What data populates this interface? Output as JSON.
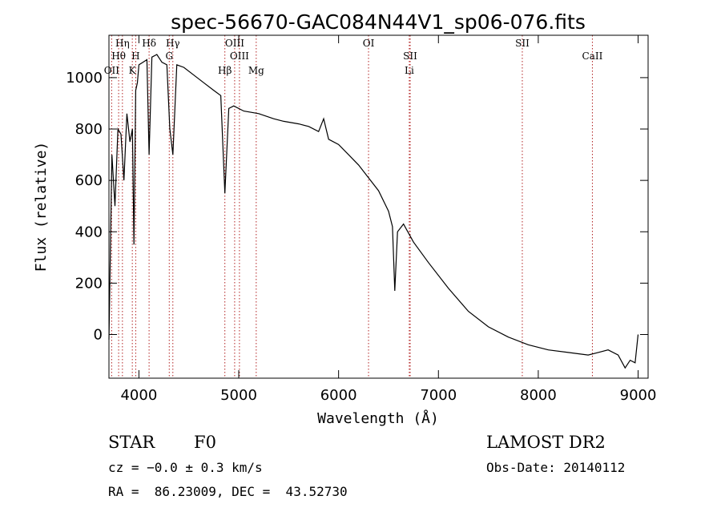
{
  "chart_data": {
    "type": "line",
    "title": "spec-56670-GAC084N44V1_sp06-076.fits",
    "xlabel": "Wavelength (Å)",
    "ylabel": "Flux (relative)",
    "xlim": [
      3700,
      9100
    ],
    "ylim": [
      -170,
      1165
    ],
    "xticks": [
      4000,
      5000,
      6000,
      7000,
      8000,
      9000
    ],
    "yticks": [
      0,
      200,
      400,
      600,
      800,
      1000
    ],
    "spectral_lines": [
      {
        "label": "Hη",
        "wavelength": 3835
      },
      {
        "label": "Hθ",
        "wavelength": 3797
      },
      {
        "label": "OII",
        "wavelength": 3727
      },
      {
        "label": "Hδ",
        "wavelength": 4102
      },
      {
        "label": "H",
        "wavelength": 3968
      },
      {
        "label": "K",
        "wavelength": 3934
      },
      {
        "label": "Hγ",
        "wavelength": 4340
      },
      {
        "label": "G",
        "wavelength": 4304
      },
      {
        "label": "Hβ",
        "wavelength": 4861
      },
      {
        "label": "OIII",
        "wavelength": 4959
      },
      {
        "label": "OIII",
        "wavelength": 5007
      },
      {
        "label": "Mg",
        "wavelength": 5175
      },
      {
        "label": "OI",
        "wavelength": 6300
      },
      {
        "label": "SII",
        "wavelength": 6717
      },
      {
        "label": "Li",
        "wavelength": 6708
      },
      {
        "label": "SII",
        "wavelength": 7840
      },
      {
        "label": "CaII",
        "wavelength": 8542
      }
    ],
    "series": [
      {
        "x": [
          3700,
          3730,
          3760,
          3790,
          3820,
          3850,
          3880,
          3910,
          3935,
          3950,
          3968,
          3985,
          4000,
          4040,
          4080,
          4102,
          4130,
          4180,
          4230,
          4280,
          4310,
          4340,
          4380,
          4450,
          4550,
          4650,
          4750,
          4820,
          4861,
          4900,
          4950,
          5050,
          5200,
          5350,
          5450,
          5600,
          5700,
          5800,
          5850,
          5900,
          6000,
          6100,
          6200,
          6300,
          6400,
          6500,
          6540,
          6563,
          6590,
          6650,
          6750,
          6900,
          7100,
          7300,
          7500,
          7700,
          7900,
          8100,
          8300,
          8500,
          8600,
          8700,
          8800,
          8870,
          8920,
          8970,
          9000
        ],
        "y": [
          -20,
          700,
          500,
          800,
          780,
          600,
          860,
          750,
          800,
          350,
          950,
          980,
          1050,
          1060,
          1070,
          700,
          1080,
          1090,
          1060,
          1050,
          800,
          700,
          1050,
          1040,
          1010,
          980,
          950,
          930,
          550,
          880,
          890,
          870,
          860,
          840,
          830,
          820,
          810,
          790,
          840,
          760,
          740,
          700,
          660,
          610,
          560,
          480,
          420,
          170,
          400,
          430,
          360,
          280,
          180,
          90,
          30,
          -10,
          -40,
          -60,
          -70,
          -80,
          -70,
          -60,
          -80,
          -130,
          -100,
          -110,
          0
        ]
      }
    ]
  },
  "info": {
    "object_type": "STAR",
    "subclass": "F0",
    "survey": "LAMOST DR2",
    "cz": "cz = −0.0 ± 0.3 km/s",
    "obs_date": "Obs-Date: 20140112",
    "coords": "RA =  86.23009, DEC =  43.52730"
  }
}
